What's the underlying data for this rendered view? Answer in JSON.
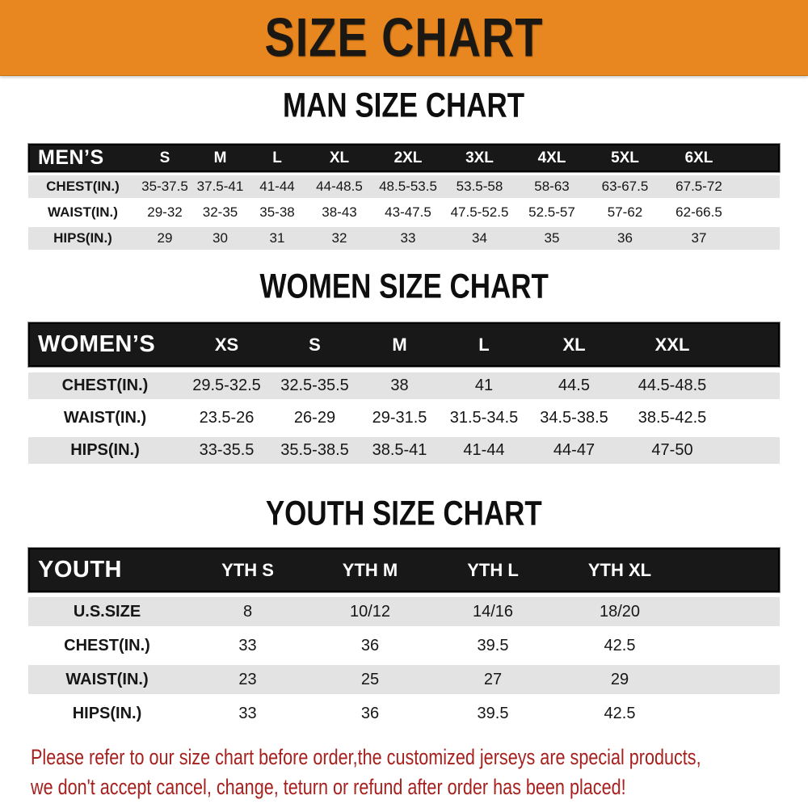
{
  "banner": {
    "title": "SIZE CHART"
  },
  "colors": {
    "banner_bg": "#E8871F",
    "header_bar_bg": "#181818",
    "row_stripe": "#E3E3E3",
    "footer_text": "#A6211E"
  },
  "sections": [
    {
      "id": "man",
      "title": "MAN SIZE CHART",
      "table": {
        "header_label": "MEN’S",
        "columns": [
          "S",
          "M",
          "L",
          "XL",
          "2XL",
          "3XL",
          "4XL",
          "5XL",
          "6XL"
        ],
        "rows": [
          {
            "label": "CHEST(IN.)",
            "values": [
              "35-37.5",
              "37.5-41",
              "41-44",
              "44-48.5",
              "48.5-53.5",
              "53.5-58",
              "58-63",
              "63-67.5",
              "67.5-72"
            ]
          },
          {
            "label": "WAIST(IN.)",
            "values": [
              "29-32",
              "32-35",
              "35-38",
              "38-43",
              "43-47.5",
              "47.5-52.5",
              "52.5-57",
              "57-62",
              "62-66.5"
            ]
          },
          {
            "label": "HIPS(IN.)",
            "values": [
              "29",
              "30",
              "31",
              "32",
              "33",
              "34",
              "35",
              "36",
              "37"
            ]
          }
        ]
      }
    },
    {
      "id": "women",
      "title": "WOMEN SIZE CHART",
      "table": {
        "header_label": "WOMEN’S",
        "columns": [
          "XS",
          "S",
          "M",
          "L",
          "XL",
          "XXL"
        ],
        "rows": [
          {
            "label": "CHEST(IN.)",
            "values": [
              "29.5-32.5",
              "32.5-35.5",
              "38",
              "41",
              "44.5",
              "44.5-48.5"
            ]
          },
          {
            "label": "WAIST(IN.)",
            "values": [
              "23.5-26",
              "26-29",
              "29-31.5",
              "31.5-34.5",
              "34.5-38.5",
              "38.5-42.5"
            ]
          },
          {
            "label": "HIPS(IN.)",
            "values": [
              "33-35.5",
              "35.5-38.5",
              "38.5-41",
              "41-44",
              "44-47",
              "47-50"
            ]
          }
        ]
      }
    },
    {
      "id": "youth",
      "title": "YOUTH SIZE CHART",
      "table": {
        "header_label": "YOUTH",
        "columns": [
          "YTH S",
          "YTH M",
          "YTH L",
          "YTH XL"
        ],
        "rows": [
          {
            "label": "U.S.SIZE",
            "values": [
              "8",
              "10/12",
              "14/16",
              "18/20"
            ]
          },
          {
            "label": "CHEST(IN.)",
            "values": [
              "33",
              "36",
              "39.5",
              "42.5"
            ]
          },
          {
            "label": "WAIST(IN.)",
            "values": [
              "23",
              "25",
              "27",
              "29"
            ]
          },
          {
            "label": "HIPS(IN.)",
            "values": [
              "33",
              "36",
              "39.5",
              "42.5"
            ]
          }
        ]
      }
    }
  ],
  "footer": {
    "line1": "Please refer to our size chart before order,the customized jerseys are special products,",
    "line2": "we don't accept cancel, change, teturn or refund after order has been placed!"
  }
}
